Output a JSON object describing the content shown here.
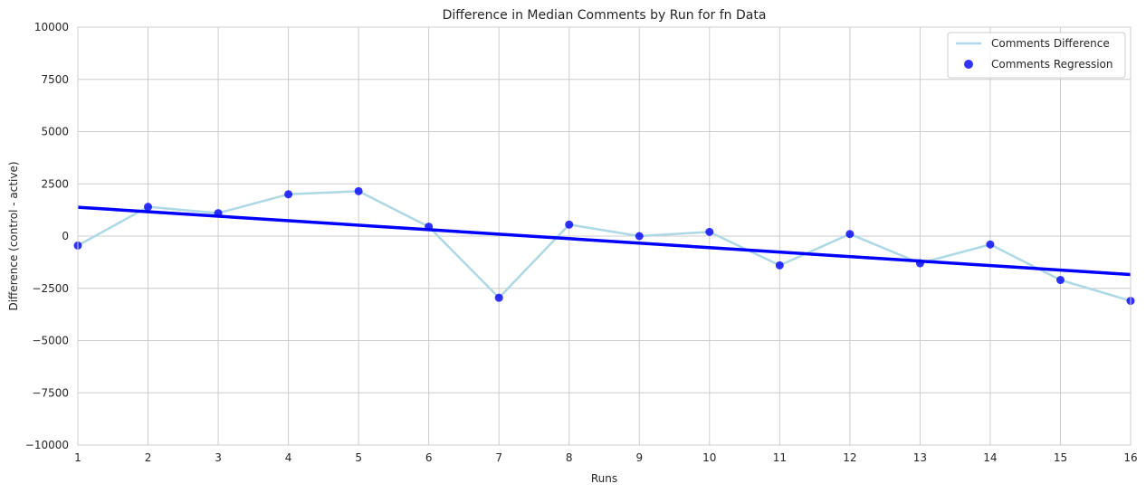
{
  "chart_data": {
    "type": "line",
    "title": "Difference in Median Comments by Run for fn Data",
    "xlabel": "Runs",
    "ylabel": "Difference (control - active)",
    "xlim": [
      1,
      16
    ],
    "ylim": [
      -10000,
      10000
    ],
    "xticks": [
      1,
      2,
      3,
      4,
      5,
      6,
      7,
      8,
      9,
      10,
      11,
      12,
      13,
      14,
      15,
      16
    ],
    "yticks": [
      -10000,
      -7500,
      -5000,
      -2500,
      0,
      2500,
      5000,
      7500,
      10000
    ],
    "ytick_labels": [
      "−10000",
      "−7500",
      "−5000",
      "−2500",
      "0",
      "2500",
      "5000",
      "7500",
      "10000"
    ],
    "grid": true,
    "legend_position": "top-right",
    "x": [
      1,
      2,
      3,
      4,
      5,
      6,
      7,
      8,
      9,
      10,
      11,
      12,
      13,
      14,
      15,
      16
    ],
    "series": [
      {
        "name": "Comments Difference",
        "kind": "line",
        "color": "#add8e6",
        "values": [
          -450,
          1400,
          1100,
          2000,
          2150,
          450,
          -2950,
          550,
          0,
          200,
          -1400,
          100,
          -1300,
          -400,
          -2100,
          -3100
        ]
      },
      {
        "name": "Comments Regression",
        "kind": "scatter",
        "color": "#0000ff",
        "values": [
          -450,
          1400,
          1100,
          2000,
          2150,
          450,
          -2950,
          550,
          0,
          200,
          -1400,
          100,
          -1300,
          -400,
          -2100,
          -3100
        ]
      }
    ],
    "regression_line": {
      "color": "#0000ff",
      "x": [
        1,
        16
      ],
      "y": [
        1380,
        -1840
      ]
    }
  }
}
